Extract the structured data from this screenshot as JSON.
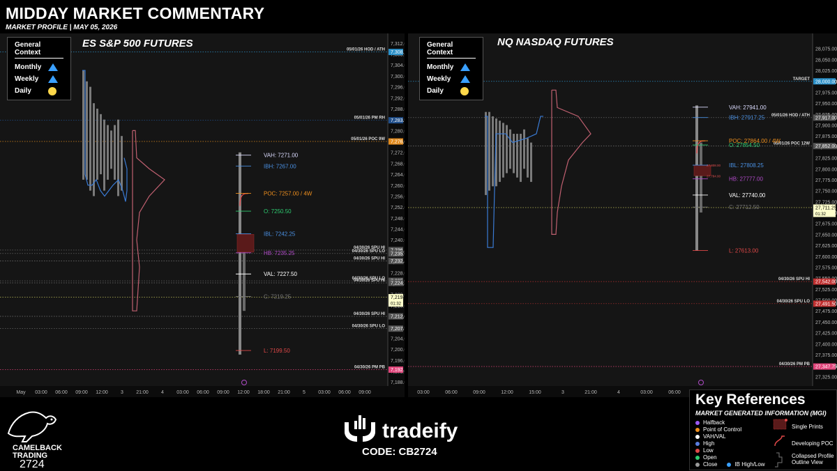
{
  "header": {
    "title": "MIDDAY MARKET COMMENTARY",
    "subtitle": "MARKET PROFILE | MAY 05, 2026"
  },
  "context_box": {
    "title": "General Context",
    "rows": [
      {
        "label": "Monthly",
        "symbol": "up-triangle-icon",
        "color": "#3aa0ff"
      },
      {
        "label": "Weekly",
        "symbol": "up-triangle-icon",
        "color": "#3aa0ff"
      },
      {
        "label": "Daily",
        "symbol": "circle-icon",
        "color": "#ffd84a"
      }
    ]
  },
  "chart_data": [
    {
      "type": "market-profile",
      "title": "ES S&P 500 FUTURES",
      "ylim": [
        7186,
        7314
      ],
      "ticks": [
        "7,312.00",
        "7,308.00",
        "7,304.00",
        "7,300.00",
        "7,296.00",
        "7,292.00",
        "7,288.00",
        "7,284.00",
        "7,280.00",
        "7,276.00",
        "7,272.00",
        "7,268.00",
        "7,264.00",
        "7,260.00",
        "7,256.00",
        "7,252.00",
        "7,248.00",
        "7,244.00",
        "7,240.00",
        "7,236.00",
        "7,232.00",
        "7,228.00",
        "7,224.00",
        "7,220.00",
        "7,216.00",
        "7,212.00",
        "7,208.00",
        "7,204.00",
        "7,200.00",
        "7,196.00",
        "7,192.00",
        "7,188.00"
      ],
      "x_labels": [
        "May",
        "03:00",
        "06:00",
        "09:00",
        "12:00",
        "3",
        "21:00",
        "4",
        "03:00",
        "06:00",
        "09:00",
        "12:00",
        "18:00",
        "21:00",
        "5",
        "03:00",
        "06:00",
        "09:00"
      ],
      "annotations": [
        {
          "text": "VAH: 7271.00",
          "value": 7271.0,
          "color": "#dcdcff"
        },
        {
          "text": "IBH: 7267.00",
          "value": 7267.0,
          "color": "#4a90e2"
        },
        {
          "text": "POC: 7257.00 / 4W",
          "value": 7257.0,
          "color": "#f0901e"
        },
        {
          "text": "O: 7250.50",
          "value": 7250.5,
          "color": "#2ecc71"
        },
        {
          "text": "IBL: 7242.25",
          "value": 7242.25,
          "color": "#4a90e2"
        },
        {
          "text": "HB: 7235.25",
          "value": 7235.25,
          "color": "#b04ac8"
        },
        {
          "text": "VAL: 7227.50",
          "value": 7227.5,
          "color": "#ffffff"
        },
        {
          "text": "C: 7219.25",
          "value": 7219.25,
          "color": "#777777"
        },
        {
          "text": "L: 7199.50",
          "value": 7199.5,
          "color": "#e04848"
        }
      ],
      "levels": [
        {
          "label": "05/01/26 HOD / ATH",
          "value": 7308.75,
          "price": "7,308.75",
          "badge": "#2b90c8"
        },
        {
          "label": "05/01/26 PM RH",
          "value": 7283.75,
          "price": "7,283.75",
          "badge": "#1f4e8a"
        },
        {
          "label": "05/01/26 POC 9W",
          "value": 7276.0,
          "price": "7,276.00",
          "badge": "#e08a1e"
        },
        {
          "label": "04/30/26 SPU HI",
          "value": 7236.25,
          "price": "7,236.25",
          "badge": "#555555"
        },
        {
          "label": "04/30/26 SPU LO",
          "value": 7235.0,
          "price": "7,235.00",
          "badge": "#555555"
        },
        {
          "label": "04/30/26 SPU HI",
          "value": 7232.25,
          "price": "7,232.25",
          "badge": "#555555"
        },
        {
          "label": "04/30/26 SPU LO",
          "value": 7225.0,
          "price": "7,225.00",
          "badge": "#555555"
        },
        {
          "label": "04/30/26 SPU HI",
          "value": 7224.25,
          "price": "7,224.25",
          "badge": "#555555"
        },
        {
          "label": "",
          "value": 7219.0,
          "price": "7,219.00",
          "badge": "#ffffcc",
          "sub": "01:32"
        },
        {
          "label": "04/30/26 SPU HI",
          "value": 7212.0,
          "price": "7,212.00",
          "badge": "#555555"
        },
        {
          "label": "04/30/26 SPU LO",
          "value": 7207.5,
          "price": "7,207.50",
          "badge": "#555555"
        },
        {
          "label": "04/30/26 PM PB",
          "value": 7192.5,
          "price": "7,192.50",
          "badge": "#e0447a"
        }
      ],
      "developing_poc": {
        "from": 7270,
        "to": 7257
      },
      "single_prints": {
        "from": 7242,
        "to": 7235.5
      }
    },
    {
      "type": "market-profile",
      "title": "NQ NASDAQ FUTURES",
      "ylim": [
        27300,
        28100
      ],
      "ticks": [
        "28,075.00",
        "28,050.00",
        "28,025.00",
        "28,000.00",
        "27,975.00",
        "27,950.00",
        "27,925.00",
        "27,900.00",
        "27,875.00",
        "27,850.00",
        "27,825.00",
        "27,800.00",
        "27,775.00",
        "27,750.00",
        "27,725.00",
        "27,700.00",
        "27,675.00",
        "27,650.00",
        "27,625.00",
        "27,600.00",
        "27,575.00",
        "27,550.00",
        "27,525.00",
        "27,500.00",
        "27,475.00",
        "27,450.00",
        "27,425.00",
        "27,400.00",
        "27,375.00",
        "27,350.00",
        "27,325.00"
      ],
      "x_labels": [
        "03:00",
        "06:00",
        "09:00",
        "12:00",
        "15:00",
        "3",
        "21:00",
        "4",
        "03:00",
        "06:00",
        "09:00",
        "12:00"
      ],
      "annotations": [
        {
          "text": "VAH: 27941.00",
          "value": 27941.0,
          "color": "#dcdcff"
        },
        {
          "text": "IBH: 27917.25",
          "value": 27917.25,
          "color": "#4a90e2"
        },
        {
          "text": "POC: 27864.00 / 4W",
          "value": 27864.0,
          "color": "#f0901e"
        },
        {
          "text": "O: 27854.50",
          "value": 27854.5,
          "color": "#2ecc71"
        },
        {
          "text": "IBL: 27808.25",
          "value": 27808.25,
          "color": "#4a90e2"
        },
        {
          "text": "HB: 27777.00",
          "value": 27777.0,
          "color": "#b04ac8"
        },
        {
          "text": "VAL: 27740.00",
          "value": 27740.0,
          "color": "#ffffff"
        },
        {
          "text": "C: 27712.50",
          "value": 27712.5,
          "color": "#777777"
        },
        {
          "text": "L: 27613.00",
          "value": 27613.0,
          "color": "#e04848"
        }
      ],
      "levels": [
        {
          "label": "TARGET",
          "value": 28000.0,
          "price": "28,000.00",
          "badge": "#2b90c8"
        },
        {
          "label": "05/01/26 HOD / ATH",
          "value": 27917.0,
          "price": "27,917.00",
          "badge": "#555555"
        },
        {
          "label": "05/01/26 POC 12W",
          "value": 27852.0,
          "price": "27,852.00",
          "badge": "#555555"
        },
        {
          "label": "",
          "value": 27711.25,
          "price": "27,711.25",
          "badge": "#ffffcc",
          "sub": "01:32"
        },
        {
          "label": "04/30/26 SPU HI",
          "value": 27542.0,
          "price": "27,542.00",
          "badge": "#c03030"
        },
        {
          "label": "04/30/26 SPU LO",
          "value": 27491.5,
          "price": "27,491.50",
          "badge": "#c03030"
        },
        {
          "label": "04/30/26 PM PB",
          "value": 27347.75,
          "price": "27,347.75",
          "badge": "#e0447a"
        }
      ],
      "developing_poc": {
        "from": 27940,
        "to": 27864
      },
      "single_prints": {
        "from": 27808,
        "to": 27784
      },
      "single_print_labels": [
        "27,808.00",
        "27,784.00"
      ]
    }
  ],
  "footer": {
    "brand_left_line1": "CAMELBACK",
    "brand_left_line2": "TRADING",
    "brand_left_code": "2724",
    "sponsor": "tradeify",
    "code": "CODE: CB2724"
  },
  "key_references": {
    "title": "Key  References",
    "subtitle": "MARKET GENERATED INFORMATION (MGI)",
    "items": [
      {
        "label": "Halfback",
        "color": "#9b59f6"
      },
      {
        "label": "Point of Control",
        "color": "#f0901e"
      },
      {
        "label": "VAH/VAL",
        "color": "#ffffff"
      },
      {
        "label": "High",
        "color": "#5a7de0"
      },
      {
        "label": "Low",
        "color": "#e04848"
      },
      {
        "label": "Open",
        "color": "#2ecc71"
      },
      {
        "label": "Close",
        "color": "#9a9a9a"
      }
    ],
    "ib_label": "IB High/Low",
    "ib_color": "#3aa0ff",
    "single_prints_label": "Single Prints",
    "developing_poc_label": "Developing POC",
    "collapsed_label_1": "Collapsed Profile",
    "collapsed_label_2": "Outline View"
  }
}
